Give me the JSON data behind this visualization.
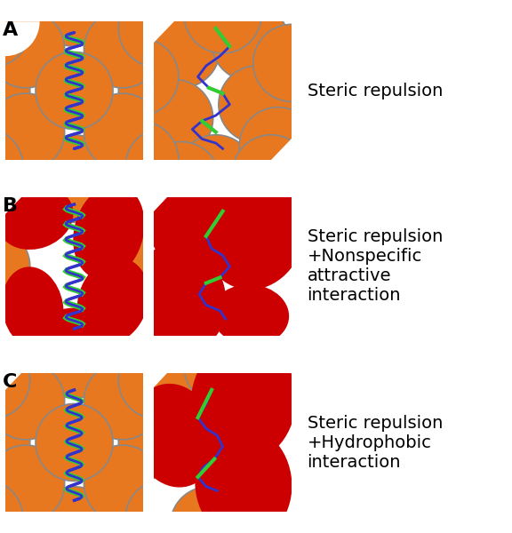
{
  "background_color": "#ffffff",
  "orange_bg": "#E87820",
  "red_crowder": "#CC0000",
  "gray_circle_edge": "#999999",
  "blue_protein": "#3333CC",
  "green_helix": "#33CC33",
  "white_gap": "#ffffff",
  "panel_labels": [
    "A",
    "B",
    "C"
  ],
  "row_labels": [
    "Steric repulsion",
    "Steric repulsion\n+Nonspecific\nattractive\ninteraction",
    "Steric repulsion\n+Hydrophobic\ninteraction"
  ],
  "label_fontsize": 14,
  "panel_label_fontsize": 16
}
